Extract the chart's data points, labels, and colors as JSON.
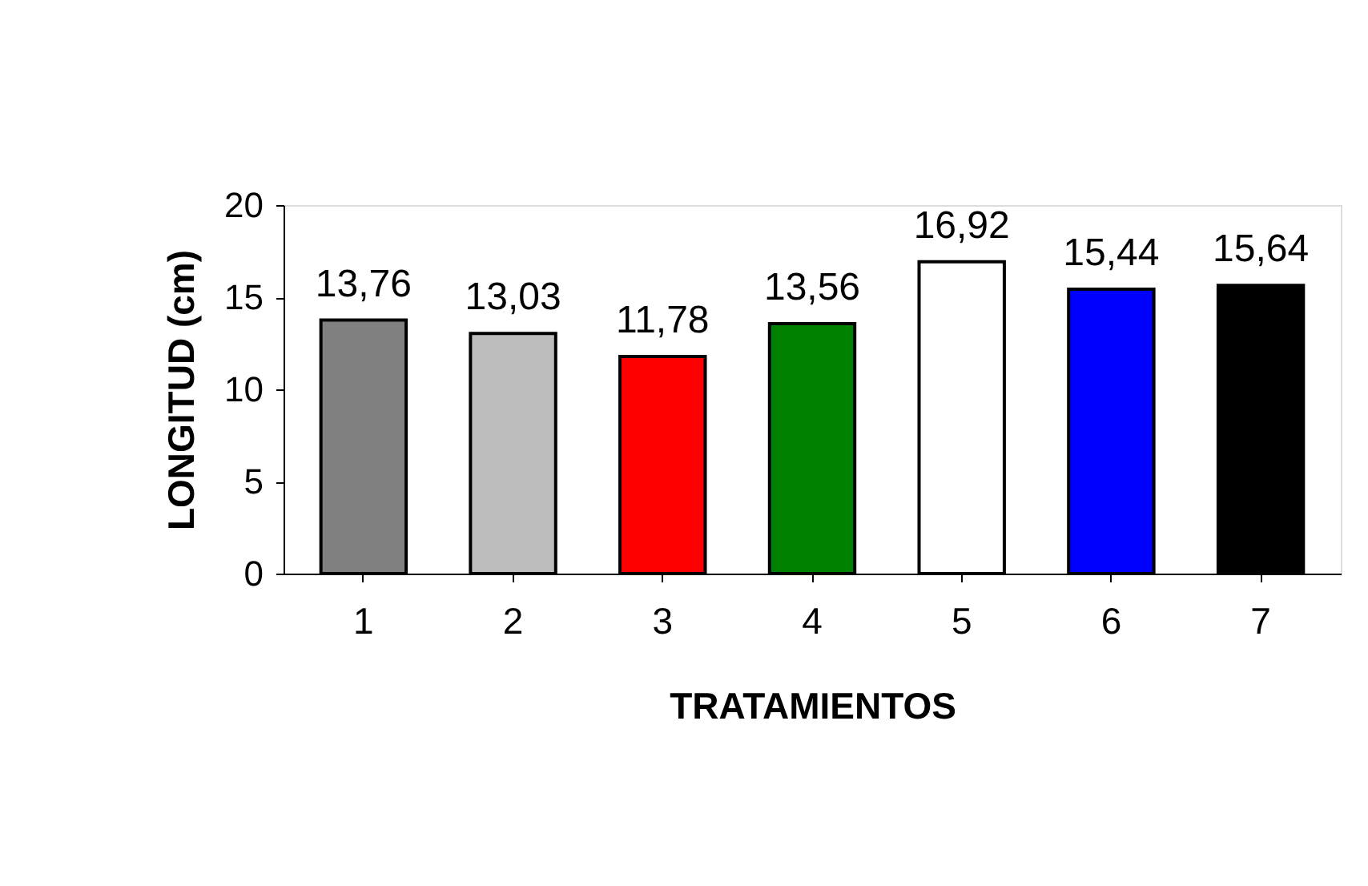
{
  "chart_data": {
    "type": "bar",
    "xlabel": "TRATAMIENTOS",
    "ylabel": "LONGITUD (cm)",
    "categories": [
      "1",
      "2",
      "3",
      "4",
      "5",
      "6",
      "7"
    ],
    "values": [
      13.76,
      13.03,
      11.78,
      13.56,
      16.92,
      15.44,
      15.64
    ],
    "value_labels": [
      "13,76",
      "13,03",
      "11,78",
      "13,56",
      "16,92",
      "15,44",
      "15,64"
    ],
    "colors": [
      "#808080",
      "#bdbdbd",
      "#ff0000",
      "#008000",
      "#ffffff",
      "#0000ff",
      "#000000"
    ],
    "ylim": [
      0,
      20
    ],
    "yticks": [
      0,
      5,
      10,
      15,
      20
    ],
    "grid": false
  }
}
